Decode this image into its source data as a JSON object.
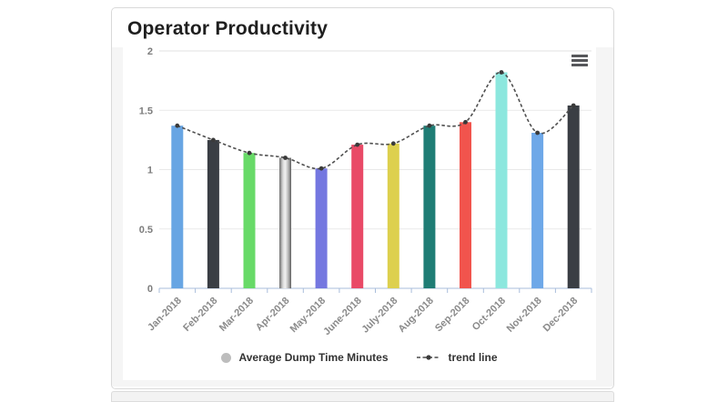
{
  "card": {
    "title": "Operator Productivity"
  },
  "chart_data": {
    "type": "bar",
    "title": "Operator Productivity",
    "categories": [
      "Jan-2018",
      "Feb-2018",
      "Mar-2018",
      "Apr-2018",
      "May-2018",
      "June-2018",
      "July-2018",
      "Aug-2018",
      "Sep-2018",
      "Oct-2018",
      "Nov-2018",
      "Dec-2018"
    ],
    "series": [
      {
        "name": "Average Dump Time Minutes",
        "type": "column",
        "values": [
          1.37,
          1.25,
          1.14,
          1.1,
          1.01,
          1.21,
          1.22,
          1.37,
          1.4,
          1.82,
          1.31,
          1.54
        ],
        "bar_colors": [
          "#68a5e3",
          "#3a3e44",
          "#68da68",
          "silver",
          "#7477e0",
          "#e94a67",
          "#ddd04e",
          "#1f7d75",
          "#f1544d",
          "#8ce7de",
          "#6ea8e8",
          "#3a3e44"
        ]
      },
      {
        "name": "trend line",
        "type": "spline",
        "dashed": true,
        "color": "#4f4f4f",
        "values": [
          1.37,
          1.25,
          1.14,
          1.1,
          1.01,
          1.21,
          1.22,
          1.37,
          1.4,
          1.82,
          1.31,
          1.54
        ]
      }
    ],
    "xlabel": "",
    "ylabel": "",
    "ylim": [
      0,
      2
    ],
    "yticks": [
      "0",
      "0.5",
      "1",
      "1.5",
      "2"
    ],
    "grid": true,
    "legend_position": "bottom"
  },
  "legend": {
    "items": [
      {
        "label": "Average Dump Time Minutes",
        "marker": "circle",
        "color": "#bdbdbd"
      },
      {
        "label": "trend line",
        "marker": "dash-dot",
        "color": "#4a4a4a"
      }
    ]
  },
  "toolbar": {
    "menu_icon": "hamburger-icon",
    "menu_color": "#56575a"
  },
  "colors": {
    "grid_line": "#e9e9e9",
    "top_line": "#e2e2e2",
    "axis_line": "#a9bddb",
    "axis_label": "#8a8a8a",
    "tick_label": "#7d7d7d",
    "silver_bar": [
      "#6f6f6f",
      "#d8d8d8",
      "#f2f2f2",
      "#b0b0b0",
      "#5d5d5d"
    ]
  }
}
